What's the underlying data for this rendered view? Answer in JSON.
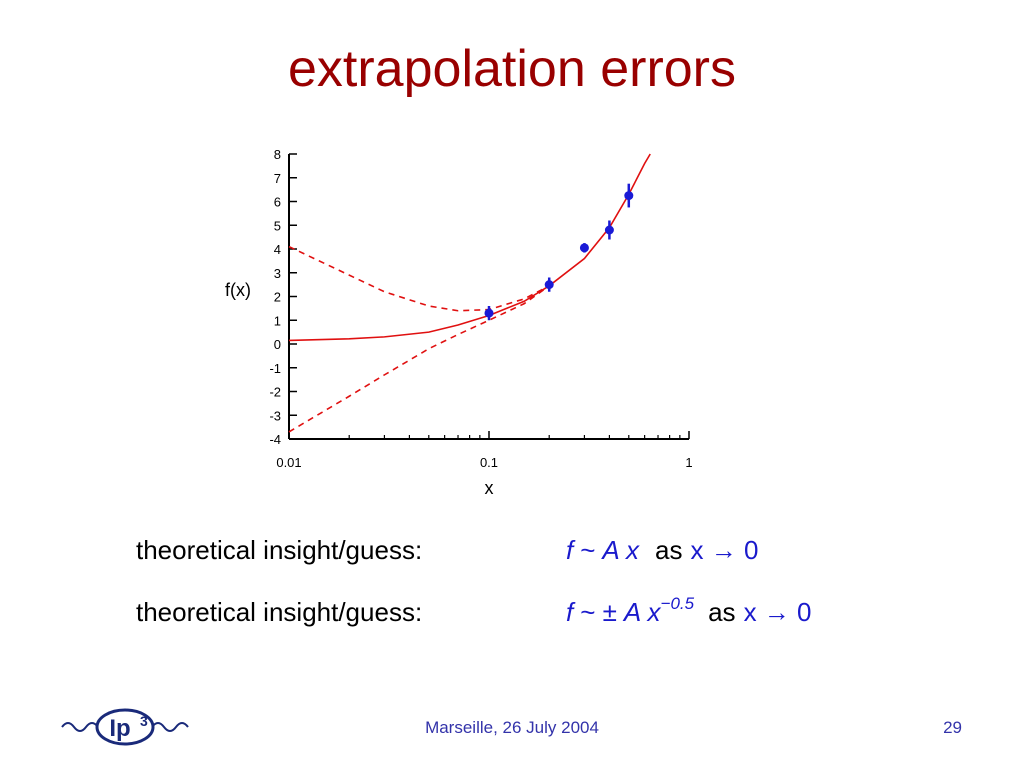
{
  "title": "extrapolation errors",
  "chart_data": {
    "type": "scatter",
    "x_label": "x",
    "y_label": "f(x)",
    "xlim": [
      0.01,
      1
    ],
    "xticks": [
      0.01,
      0.1,
      1
    ],
    "xscale": "log",
    "xminorticks": [
      0.02,
      0.03,
      0.04,
      0.05,
      0.06,
      0.07,
      0.08,
      0.09,
      0.2,
      0.3,
      0.4,
      0.5,
      0.6,
      0.7,
      0.8,
      0.9
    ],
    "ylim": [
      -4,
      8
    ],
    "yticks": [
      -4,
      -3,
      -2,
      -1,
      0,
      1,
      2,
      3,
      4,
      5,
      6,
      7,
      8
    ],
    "points": {
      "color": "#1a1ad6",
      "x": [
        0.1,
        0.2,
        0.3,
        0.4,
        0.5
      ],
      "values": [
        1.3,
        2.5,
        4.05,
        4.8,
        6.25
      ],
      "errors": [
        0.3,
        0.3,
        0.2,
        0.4,
        0.5
      ]
    },
    "curves": [
      {
        "color": "#e01010",
        "dash": false,
        "x": [
          0.01,
          0.02,
          0.03,
          0.05,
          0.07,
          0.1,
          0.15,
          0.2,
          0.3,
          0.4,
          0.5,
          0.6,
          0.64
        ],
        "values": [
          0.15,
          0.22,
          0.3,
          0.5,
          0.8,
          1.2,
          1.8,
          2.45,
          3.6,
          4.9,
          6.3,
          7.6,
          8
        ]
      },
      {
        "color": "#e01010",
        "dash": true,
        "x": [
          0.01,
          0.02,
          0.03,
          0.05,
          0.07,
          0.1,
          0.15,
          0.2
        ],
        "values": [
          4.1,
          2.9,
          2.2,
          1.6,
          1.4,
          1.45,
          1.9,
          2.45
        ]
      },
      {
        "color": "#e01010",
        "dash": true,
        "x": [
          0.01,
          0.02,
          0.03,
          0.05,
          0.07,
          0.1,
          0.15,
          0.2
        ],
        "values": [
          -3.7,
          -2.2,
          -1.3,
          -0.2,
          0.4,
          1.0,
          1.7,
          2.45
        ]
      }
    ]
  },
  "notes": [
    {
      "label": "theoretical insight/guess:",
      "f": "f",
      "rel": "~",
      "term": "A x",
      "tail": "as",
      "limit": "x → 0"
    },
    {
      "label": "theoretical insight/guess:",
      "f": "f",
      "rel": "~ ±",
      "term": "A x",
      "exponent": "−0.5",
      "tail": "as",
      "limit": "x → 0"
    }
  ],
  "logo": {
    "text": "Ip",
    "sup": "3"
  },
  "footer": {
    "text": "Marseille, 26 July 2004",
    "page": "29"
  }
}
